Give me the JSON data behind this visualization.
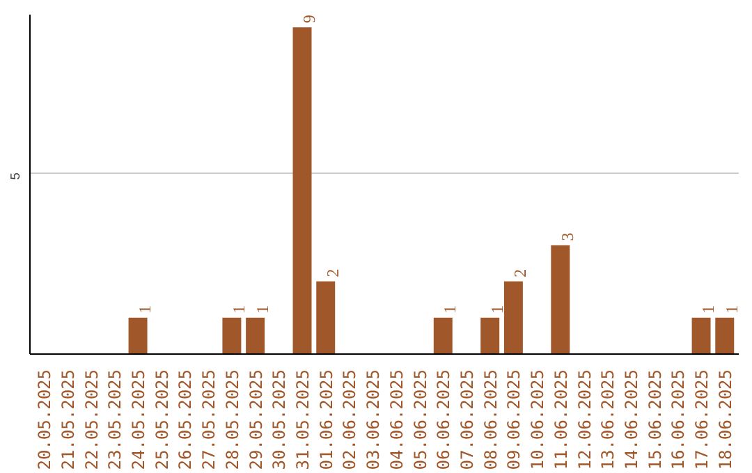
{
  "chart_data": {
    "type": "bar",
    "categories": [
      "20.05.2025",
      "21.05.2025",
      "22.05.2025",
      "23.05.2025",
      "24.05.2025",
      "25.05.2025",
      "26.05.2025",
      "27.05.2025",
      "28.05.2025",
      "29.05.2025",
      "30.05.2025",
      "31.05.2025",
      "01.06.2025",
      "02.06.2025",
      "03.06.2025",
      "04.06.2025",
      "05.06.2025",
      "06.06.2025",
      "07.06.2025",
      "08.06.2025",
      "09.06.2025",
      "10.06.2025",
      "11.06.2025",
      "12.06.2025",
      "13.06.2025",
      "14.06.2025",
      "15.06.2025",
      "16.06.2025",
      "17.06.2025",
      "18.06.2025"
    ],
    "values": [
      0,
      0,
      0,
      0,
      1,
      0,
      0,
      0,
      1,
      1,
      0,
      9,
      2,
      0,
      0,
      0,
      0,
      1,
      0,
      1,
      2,
      0,
      3,
      0,
      0,
      0,
      0,
      0,
      1,
      1
    ],
    "value_labels": [
      null,
      null,
      null,
      null,
      "1",
      null,
      null,
      null,
      "1",
      "1",
      null,
      "9",
      "2",
      null,
      null,
      null,
      null,
      "1",
      null,
      "1",
      "2",
      null,
      "3",
      null,
      null,
      null,
      null,
      null,
      "1",
      "1"
    ],
    "color": "#a0572a",
    "ylim": [
      0,
      9.35
    ],
    "yticks": [
      5
    ],
    "grid": "y"
  }
}
